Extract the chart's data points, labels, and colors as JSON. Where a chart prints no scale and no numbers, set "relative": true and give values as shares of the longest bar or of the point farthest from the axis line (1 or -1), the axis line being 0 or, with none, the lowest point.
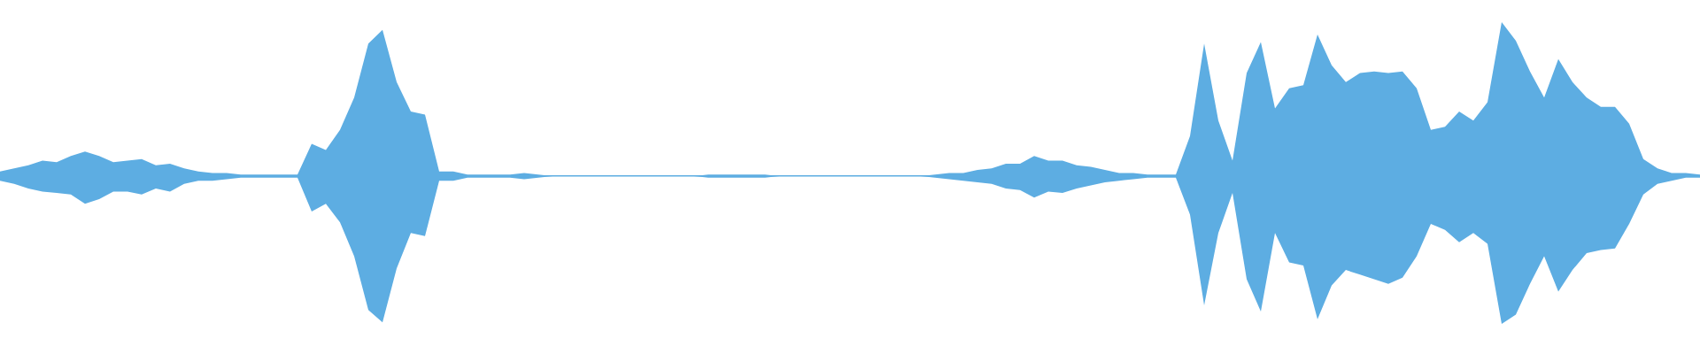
{
  "chart_data": {
    "type": "area",
    "relative": true,
    "categories": [
      null,
      null,
      null,
      null,
      null,
      null,
      null,
      null,
      null,
      null,
      null,
      null,
      null,
      null,
      null,
      null,
      null,
      null,
      null,
      null,
      null,
      null,
      null,
      null,
      null,
      null,
      null,
      null,
      null,
      null,
      null,
      null,
      null,
      null,
      null,
      null,
      null,
      null,
      null,
      null,
      null,
      null,
      null,
      null,
      null,
      null,
      null,
      null,
      null,
      null,
      null,
      null,
      null,
      null,
      null,
      null,
      null,
      null,
      null,
      null,
      null,
      null,
      null,
      null,
      null,
      null,
      null,
      null,
      null,
      null,
      null,
      null,
      null,
      null,
      null,
      null,
      null,
      null,
      null,
      null,
      null,
      null,
      null,
      null,
      null,
      null,
      null,
      null,
      null,
      null,
      null,
      null,
      null,
      null,
      null,
      null,
      null,
      null,
      null,
      null,
      null,
      null,
      null,
      null,
      null,
      null,
      null,
      null,
      null,
      null,
      null,
      null,
      null,
      null,
      null,
      null,
      null,
      null,
      null,
      null,
      null
    ],
    "series": [
      {
        "color": "#5dade2",
        "values": [
          0.03,
          0.05,
          0.07,
          0.1,
          0.09,
          0.13,
          0.16,
          0.13,
          0.09,
          0.1,
          0.11,
          0.07,
          0.08,
          0.05,
          0.03,
          0.02,
          0.02,
          0.01,
          0.01,
          0.01,
          0.01,
          0.01,
          0.21,
          0.17,
          0.3,
          0.51,
          0.86,
          0.95,
          0.61,
          0.42,
          0.4,
          0.03,
          0.03,
          0.01,
          0.01,
          0.01,
          0.01,
          0.02,
          0.01,
          0,
          0,
          0,
          0,
          0,
          0,
          0,
          0,
          0,
          0,
          0,
          0.01,
          0.01,
          0.01,
          0.01,
          0.01,
          0,
          0,
          0,
          0,
          0,
          0,
          0,
          0,
          0,
          0,
          0,
          0.01,
          0.02,
          0.02,
          0.04,
          0.05,
          0.08,
          0.08,
          0.13,
          0.1,
          0.1,
          0.07,
          0.06,
          0.04,
          0.02,
          0.02,
          0.01,
          0.01,
          0.01,
          0.26,
          0.86,
          0.36,
          0.1,
          0.67,
          0.87,
          0.44,
          0.57,
          0.59,
          0.92,
          0.72,
          0.61,
          0.67,
          0.68,
          0.67,
          0.68,
          0.57,
          0.3,
          0.32,
          0.42,
          0.36,
          0.48,
          1.0,
          0.88,
          0.68,
          0.51,
          0.76,
          0.61,
          0.51,
          0.45,
          0.45,
          0.34,
          0.11,
          0.05,
          0.02,
          0.02,
          0.01
        ]
      },
      {
        "color": "#5dade2",
        "values": [
          -0.03,
          -0.05,
          -0.08,
          -0.1,
          -0.11,
          -0.12,
          -0.18,
          -0.15,
          -0.1,
          -0.1,
          -0.12,
          -0.08,
          -0.1,
          -0.05,
          -0.03,
          -0.03,
          -0.02,
          -0.01,
          -0.01,
          -0.01,
          -0.01,
          -0.01,
          -0.23,
          -0.18,
          -0.3,
          -0.52,
          -0.87,
          -0.95,
          -0.6,
          -0.37,
          -0.39,
          -0.03,
          -0.03,
          -0.01,
          -0.01,
          -0.01,
          -0.01,
          -0.02,
          -0.01,
          0,
          0,
          0,
          0,
          0,
          0,
          0,
          0,
          0,
          0,
          0,
          -0.01,
          -0.01,
          -0.01,
          -0.01,
          -0.01,
          0,
          0,
          0,
          0,
          0,
          0,
          0,
          0,
          0,
          0,
          0,
          -0.01,
          -0.02,
          -0.03,
          -0.04,
          -0.05,
          -0.08,
          -0.09,
          -0.14,
          -0.1,
          -0.11,
          -0.08,
          -0.06,
          -0.04,
          -0.03,
          -0.02,
          -0.01,
          -0.01,
          -0.01,
          -0.25,
          -0.84,
          -0.37,
          -0.11,
          -0.67,
          -0.88,
          -0.37,
          -0.56,
          -0.58,
          -0.93,
          -0.71,
          -0.61,
          -0.64,
          -0.67,
          -0.7,
          -0.66,
          -0.52,
          -0.31,
          -0.35,
          -0.43,
          -0.37,
          -0.44,
          -0.96,
          -0.9,
          -0.7,
          -0.52,
          -0.75,
          -0.61,
          -0.5,
          -0.48,
          -0.47,
          -0.31,
          -0.12,
          -0.05,
          -0.03,
          -0.01,
          -0.01
        ]
      }
    ]
  }
}
